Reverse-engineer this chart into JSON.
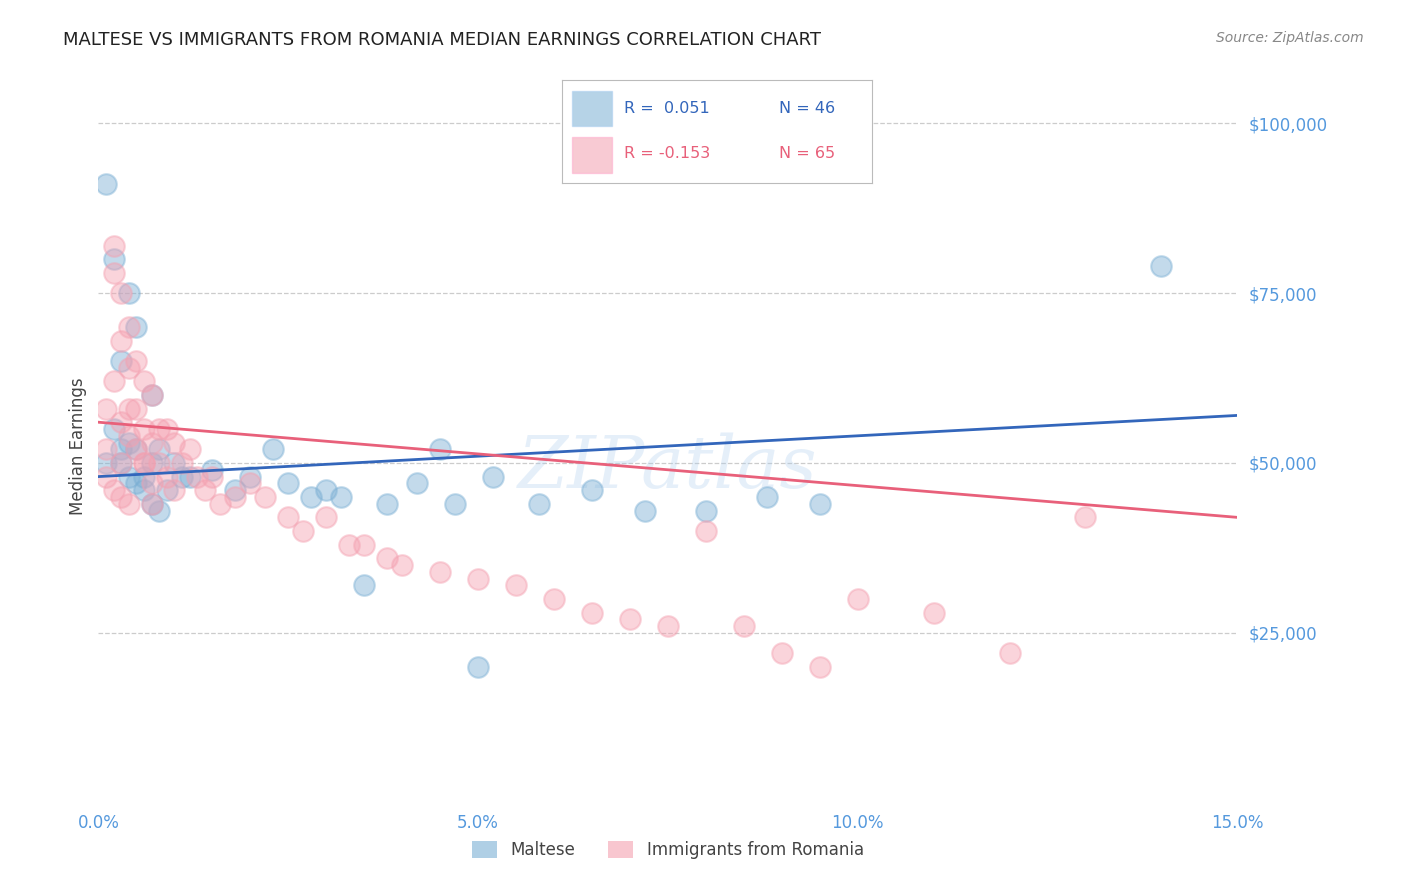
{
  "title": "MALTESE VS IMMIGRANTS FROM ROMANIA MEDIAN EARNINGS CORRELATION CHART",
  "source": "Source: ZipAtlas.com",
  "ylabel": "Median Earnings",
  "xlim": [
    0,
    0.15
  ],
  "ylim": [
    0,
    105000
  ],
  "xticks": [
    0.0,
    0.05,
    0.1,
    0.15
  ],
  "xticklabels": [
    "0.0%",
    "5.0%",
    "10.0%",
    "15.0%"
  ],
  "yticks": [
    0,
    25000,
    50000,
    75000,
    100000
  ],
  "yticklabels": [
    "",
    "$25,000",
    "$50,000",
    "$75,000",
    "$100,000"
  ],
  "background_color": "#ffffff",
  "grid_color": "#cccccc",
  "blue_color": "#7bafd4",
  "pink_color": "#f4a0b0",
  "blue_line_color": "#3366bb",
  "pink_line_color": "#e8607a",
  "title_color": "#222222",
  "axis_label_color": "#444444",
  "tick_label_color": "#5599dd",
  "source_color": "#888888",
  "legend_R_blue": "R =  0.051",
  "legend_N_blue": "N = 46",
  "legend_R_pink": "R = -0.153",
  "legend_N_pink": "N = 65",
  "legend_label_blue": "Maltese",
  "legend_label_pink": "Immigrants from Romania",
  "blue_line_y0": 48000,
  "blue_line_y1": 57000,
  "pink_line_y0": 56000,
  "pink_line_y1": 42000,
  "blue_x": [
    0.001,
    0.001,
    0.002,
    0.002,
    0.003,
    0.003,
    0.004,
    0.004,
    0.005,
    0.005,
    0.005,
    0.006,
    0.007,
    0.007,
    0.008,
    0.009,
    0.01,
    0.011,
    0.012,
    0.015,
    0.018,
    0.02,
    0.023,
    0.025,
    0.028,
    0.03,
    0.032,
    0.038,
    0.042,
    0.047,
    0.052,
    0.058,
    0.065,
    0.072,
    0.08,
    0.088,
    0.095,
    0.003,
    0.004,
    0.006,
    0.007,
    0.008,
    0.045,
    0.14,
    0.035,
    0.05
  ],
  "blue_y": [
    91000,
    50000,
    80000,
    55000,
    65000,
    50000,
    75000,
    48000,
    70000,
    52000,
    47000,
    48000,
    60000,
    50000,
    52000,
    46000,
    50000,
    48000,
    48000,
    49000,
    46000,
    48000,
    52000,
    47000,
    45000,
    46000,
    45000,
    44000,
    47000,
    44000,
    48000,
    44000,
    46000,
    43000,
    43000,
    45000,
    44000,
    52000,
    53000,
    46000,
    44000,
    43000,
    52000,
    79000,
    32000,
    20000
  ],
  "pink_x": [
    0.001,
    0.001,
    0.001,
    0.002,
    0.002,
    0.002,
    0.003,
    0.003,
    0.003,
    0.003,
    0.004,
    0.004,
    0.004,
    0.004,
    0.005,
    0.005,
    0.005,
    0.006,
    0.006,
    0.006,
    0.007,
    0.007,
    0.007,
    0.008,
    0.008,
    0.009,
    0.009,
    0.01,
    0.01,
    0.011,
    0.012,
    0.013,
    0.014,
    0.015,
    0.016,
    0.018,
    0.02,
    0.022,
    0.025,
    0.027,
    0.03,
    0.033,
    0.035,
    0.038,
    0.04,
    0.045,
    0.05,
    0.055,
    0.06,
    0.065,
    0.07,
    0.075,
    0.08,
    0.085,
    0.09,
    0.095,
    0.1,
    0.11,
    0.12,
    0.13,
    0.002,
    0.003,
    0.004,
    0.006,
    0.007
  ],
  "pink_y": [
    58000,
    52000,
    48000,
    82000,
    78000,
    62000,
    75000,
    68000,
    56000,
    50000,
    70000,
    64000,
    58000,
    54000,
    65000,
    58000,
    52000,
    62000,
    55000,
    50000,
    60000,
    53000,
    47000,
    55000,
    50000,
    55000,
    48000,
    53000,
    46000,
    50000,
    52000,
    48000,
    46000,
    48000,
    44000,
    45000,
    47000,
    45000,
    42000,
    40000,
    42000,
    38000,
    38000,
    36000,
    35000,
    34000,
    33000,
    32000,
    30000,
    28000,
    27000,
    26000,
    40000,
    26000,
    22000,
    20000,
    30000,
    28000,
    22000,
    42000,
    46000,
    45000,
    44000,
    50000,
    44000
  ]
}
